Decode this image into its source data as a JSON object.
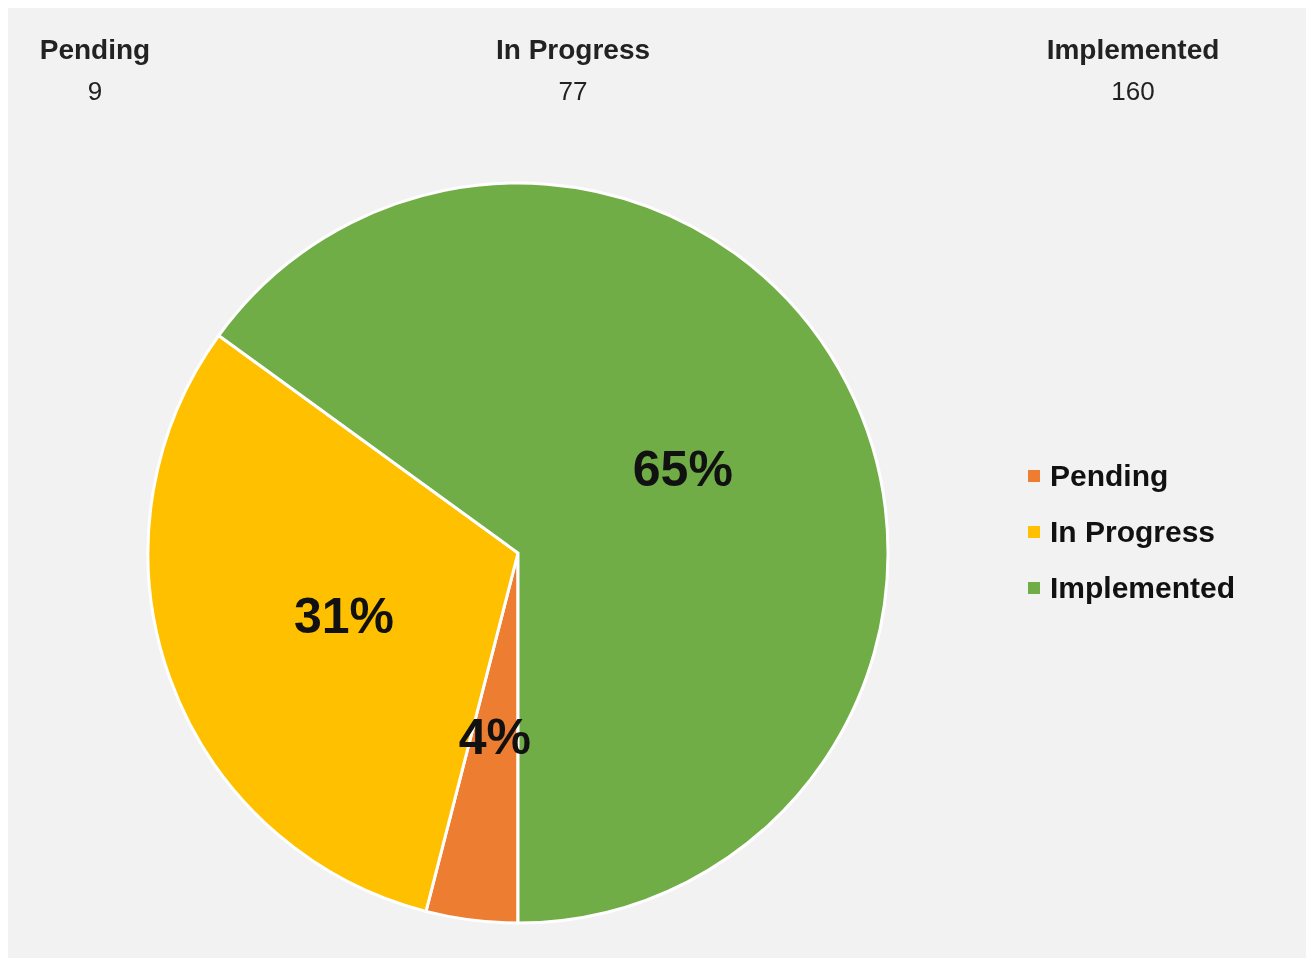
{
  "chart_data": {
    "type": "pie",
    "categories": [
      "Pending",
      "In Progress",
      "Implemented"
    ],
    "values": [
      4,
      31,
      65
    ],
    "value_labels": [
      "4%",
      "31%",
      "65%"
    ],
    "annotations": [
      "9",
      "77",
      "160"
    ],
    "colors": [
      "#ed7d31",
      "#ffc000",
      "#70ad47"
    ],
    "legend": "right"
  }
}
